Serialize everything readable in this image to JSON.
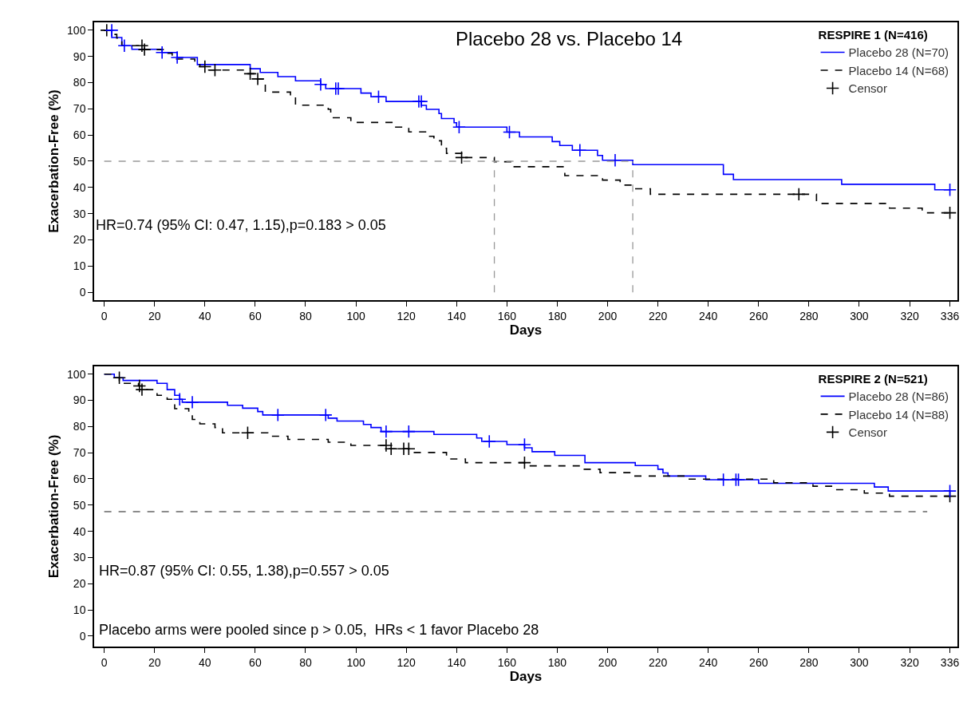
{
  "chart_data": [
    {
      "type": "step",
      "xlabel": "Days",
      "ylabel": "Exacerbation-Free (%)",
      "legend_title": "RESPIRE 1 (N=416)",
      "legend": "top right",
      "xlim": [
        -4,
        339
      ],
      "xticks": [
        0,
        20,
        40,
        60,
        80,
        100,
        120,
        140,
        160,
        180,
        200,
        220,
        240,
        260,
        280,
        300,
        320,
        336
      ],
      "ylim": [
        -3,
        103
      ],
      "yticks": [
        0,
        10,
        20,
        30,
        40,
        50,
        60,
        70,
        80,
        90,
        100
      ],
      "annotations": [
        "Placebo 28 vs. Placebo 14",
        "HR=0.74 (95% CI: 0.47, 1.15),p=0.183 > 0.05"
      ],
      "series": [
        {
          "name": "Placebo 28 (N=70)",
          "color": "#0000ff",
          "line_style": "solid",
          "x": [
            0,
            3,
            7,
            11,
            23,
            29,
            37,
            58,
            62,
            69,
            76,
            86,
            88,
            102,
            106,
            112,
            126,
            128,
            133,
            134,
            139,
            140,
            160,
            165,
            178,
            181,
            186,
            196,
            198,
            210,
            246,
            250,
            293,
            330,
            336
          ],
          "values": [
            100,
            97.2,
            94.1,
            92.7,
            91.5,
            89.6,
            86.9,
            85.3,
            83.9,
            82.3,
            80.7,
            79.3,
            77.7,
            76.0,
            74.6,
            72.8,
            71.3,
            69.8,
            68.2,
            66.3,
            64.7,
            63.0,
            61.1,
            59.3,
            57.5,
            56.0,
            54.2,
            52.2,
            50.4,
            48.7,
            45.0,
            43.0,
            41.2,
            39.1,
            39.1
          ]
        },
        {
          "name": "Placebo 14 (N=68)",
          "color": "#000000",
          "line_style": "dashed",
          "x": [
            0,
            3,
            5,
            7,
            16,
            24,
            27,
            36,
            38,
            41,
            56,
            60,
            64,
            74,
            76,
            89,
            90,
            98,
            115,
            121,
            128,
            131,
            134,
            136,
            142,
            155,
            162,
            183,
            198,
            205,
            210,
            217,
            283,
            312,
            325,
            336
          ],
          "values": [
            100,
            98.4,
            97.0,
            94.1,
            92.6,
            91.2,
            89.0,
            87.7,
            86.1,
            84.8,
            83.4,
            81.4,
            76.4,
            74.7,
            71.4,
            69.8,
            66.6,
            64.8,
            63.0,
            61.2,
            59.5,
            57.8,
            54.9,
            53.0,
            51.4,
            49.8,
            47.9,
            44.5,
            42.8,
            40.9,
            39.5,
            37.4,
            33.9,
            32.1,
            30.3,
            30.3
          ]
        },
        {
          "name": "Censor",
          "type": "scatter",
          "marker": "cross",
          "color": "#000000",
          "x": [
            1,
            15,
            16,
            40,
            44,
            58,
            61,
            142,
            276,
            336
          ],
          "values": [
            100,
            94.1,
            92.6,
            86.1,
            84.8,
            83.4,
            81.4,
            51.4,
            37.4,
            30.3
          ]
        },
        {
          "type": "scatter",
          "marker": "cross",
          "color": "#0000ff",
          "x": [
            3,
            8,
            23,
            29,
            86,
            92,
            93,
            109,
            125,
            126,
            141,
            161,
            189,
            203,
            336
          ],
          "values": [
            100,
            94.1,
            91.5,
            89.6,
            79.3,
            77.7,
            77.7,
            74.6,
            72.8,
            72.8,
            63.0,
            61.1,
            54.2,
            50.4,
            39.1
          ]
        },
        {
          "type": "line",
          "color": "#999999",
          "line_style": "dashed",
          "x": [
            0,
            210
          ],
          "values": [
            50,
            50
          ]
        },
        {
          "type": "line",
          "color": "#999999",
          "line_style": "dashed",
          "x": [
            155,
            155
          ],
          "values": [
            0,
            50
          ]
        },
        {
          "type": "line",
          "color": "#999999",
          "line_style": "dashed",
          "x": [
            210,
            210
          ],
          "values": [
            0,
            50
          ]
        }
      ]
    },
    {
      "type": "step",
      "xlabel": "Days",
      "ylabel": "Exacerbation-Free (%)",
      "legend_title": "RESPIRE 2 (N=521)",
      "legend": "top right",
      "xlim": [
        -4,
        339
      ],
      "xticks": [
        0,
        20,
        40,
        60,
        80,
        100,
        120,
        140,
        160,
        180,
        200,
        220,
        240,
        260,
        280,
        300,
        320,
        336
      ],
      "ylim": [
        -4,
        103
      ],
      "yticks": [
        0,
        10,
        20,
        30,
        40,
        50,
        60,
        70,
        80,
        90,
        100
      ],
      "annotations": [
        "HR=0.87 (95% CI: 0.55, 1.38),p=0.557 > 0.05",
        "Placebo arms were pooled since p > 0.05,  HRs < 1 favor Placebo 28"
      ],
      "series": [
        {
          "name": "Placebo 28 (N=86)",
          "color": "#0000ff",
          "line_style": "solid",
          "x": [
            0,
            4,
            7.5,
            21,
            25,
            28,
            30,
            31,
            49,
            55,
            61,
            63,
            89,
            92.5,
            103,
            106,
            110,
            131,
            148,
            150,
            160,
            167,
            170,
            179,
            191,
            211,
            220,
            222,
            224,
            239,
            260,
            306,
            311.5,
            336
          ],
          "values": [
            100,
            98.6,
            97.6,
            96.5,
            94.1,
            91.9,
            90.4,
            89.3,
            88.1,
            87.0,
            85.7,
            84.4,
            83.2,
            82.1,
            80.8,
            79.6,
            78.1,
            77.0,
            75.6,
            74.3,
            73.1,
            71.9,
            70.4,
            69.0,
            66.2,
            65.1,
            63.7,
            62.3,
            61.1,
            59.7,
            58.3,
            56.9,
            55.4,
            55.4
          ]
        },
        {
          "name": "Placebo 14 (N=88)",
          "color": "#000000",
          "line_style": "dashed",
          "x": [
            0,
            4,
            6,
            8,
            13.6,
            15,
            21,
            25,
            28,
            33.6,
            35,
            38,
            44,
            47,
            65,
            73,
            89,
            98,
            111.5,
            121,
            136,
            143.5,
            167,
            189,
            197,
            210,
            231,
            266,
            281.6,
            289,
            302,
            312,
            336
          ],
          "values": [
            100,
            98.6,
            97.6,
            96.5,
            95.5,
            94.1,
            91.9,
            90.4,
            86.8,
            85.2,
            82.7,
            81.0,
            79.6,
            77.6,
            76.3,
            75.1,
            74.0,
            72.8,
            71.5,
            70.1,
            67.6,
            66.2,
            65.0,
            63.7,
            62.4,
            61.1,
            59.9,
            58.5,
            57.2,
            55.9,
            54.6,
            53.4,
            53.4
          ]
        },
        {
          "name": "Censor",
          "type": "scatter",
          "marker": "cross",
          "color": "#000000",
          "x": [
            6,
            14,
            15,
            57,
            112,
            114,
            119,
            121,
            167,
            336
          ],
          "values": [
            98.6,
            95.5,
            94.1,
            77.6,
            72.8,
            71.5,
            71.5,
            71.5,
            66.2,
            53.4
          ]
        },
        {
          "type": "scatter",
          "marker": "cross",
          "color": "#0000ff",
          "x": [
            30,
            35,
            69,
            88,
            112,
            121,
            153,
            167,
            246,
            251,
            252,
            336
          ],
          "values": [
            90.4,
            89.3,
            84.4,
            84.4,
            78.1,
            78.1,
            74.3,
            73.1,
            59.7,
            59.7,
            59.7,
            55.4
          ]
        },
        {
          "type": "line",
          "color": "#666666",
          "line_style": "dashed",
          "x": [
            0,
            327
          ],
          "values": [
            47.5,
            47.5
          ]
        }
      ]
    }
  ]
}
